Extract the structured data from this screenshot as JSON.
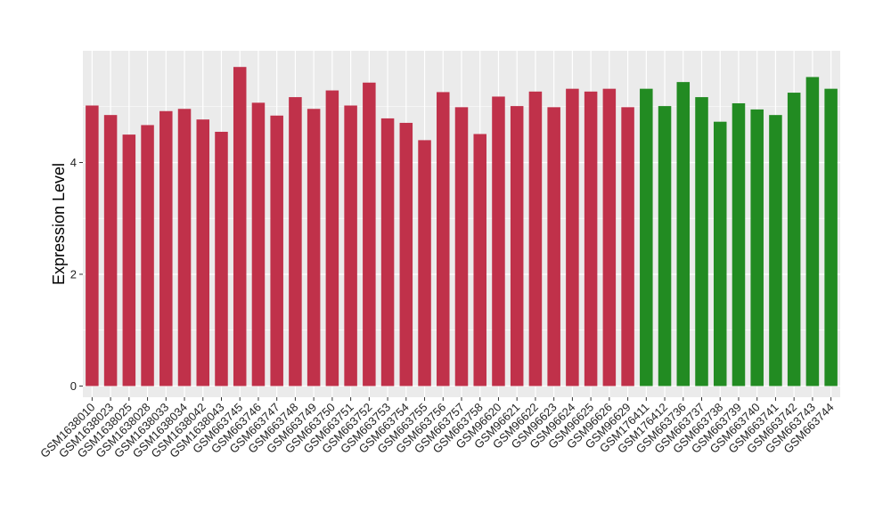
{
  "chart_data": {
    "type": "bar",
    "title": "",
    "xlabel": "",
    "ylabel": "Expression Level",
    "ylim": [
      -0.2,
      6.0
    ],
    "y_ticks": [
      0,
      2,
      4
    ],
    "grid": true,
    "legend": "none",
    "panel_background": "#ebebeb",
    "grid_color": "#ffffff",
    "categories": [
      "GSM1638010",
      "GSM1638023",
      "GSM1638025",
      "GSM1638028",
      "GSM1638033",
      "GSM1638034",
      "GSM1638042",
      "GSM1638043",
      "GSM663745",
      "GSM663746",
      "GSM663747",
      "GSM663748",
      "GSM663749",
      "GSM663750",
      "GSM663751",
      "GSM663752",
      "GSM663753",
      "GSM663754",
      "GSM663755",
      "GSM663756",
      "GSM663757",
      "GSM663758",
      "GSM96620",
      "GSM96621",
      "GSM96622",
      "GSM96623",
      "GSM96624",
      "GSM96625",
      "GSM96626",
      "GSM96629",
      "GSM176411",
      "GSM176412",
      "GSM663736",
      "GSM663737",
      "GSM663738",
      "GSM663739",
      "GSM663740",
      "GSM663741",
      "GSM663742",
      "GSM663743",
      "GSM663744"
    ],
    "values": [
      5.02,
      4.85,
      4.5,
      4.67,
      4.92,
      4.96,
      4.77,
      4.55,
      5.71,
      5.07,
      4.84,
      5.17,
      4.96,
      5.29,
      5.02,
      5.43,
      4.79,
      4.71,
      4.4,
      5.26,
      4.99,
      4.51,
      5.18,
      5.01,
      5.27,
      4.99,
      5.32,
      5.27,
      5.32,
      4.99,
      5.32,
      5.01,
      5.44,
      5.17,
      4.73,
      5.06,
      4.95,
      4.85,
      5.25,
      5.53,
      5.32
    ],
    "bar_colors": [
      "#c0314a",
      "#c0314a",
      "#c0314a",
      "#c0314a",
      "#c0314a",
      "#c0314a",
      "#c0314a",
      "#c0314a",
      "#c0314a",
      "#c0314a",
      "#c0314a",
      "#c0314a",
      "#c0314a",
      "#c0314a",
      "#c0314a",
      "#c0314a",
      "#c0314a",
      "#c0314a",
      "#c0314a",
      "#c0314a",
      "#c0314a",
      "#c0314a",
      "#c0314a",
      "#c0314a",
      "#c0314a",
      "#c0314a",
      "#c0314a",
      "#c0314a",
      "#c0314a",
      "#c0314a",
      "#228b22",
      "#228b22",
      "#228b22",
      "#228b22",
      "#228b22",
      "#228b22",
      "#228b22",
      "#228b22",
      "#228b22",
      "#228b22",
      "#228b22"
    ]
  }
}
